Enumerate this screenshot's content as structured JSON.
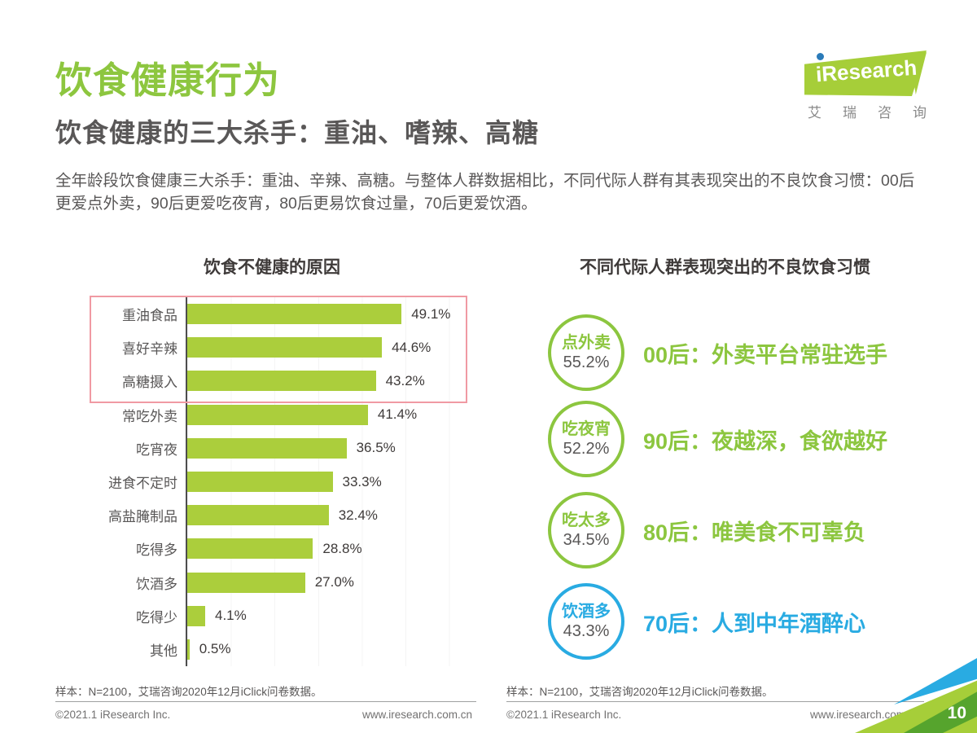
{
  "header": {
    "title": "饮食健康行为",
    "subtitle": "饮食健康的三大杀手：重油、嗜辣、高糖",
    "description": "全年龄段饮食健康三大杀手：重油、辛辣、高糖。与整体人群数据相比，不同代际人群有其表现突出的不良饮食习惯：00后更爱点外卖，90后更爱吃夜宵，80后更易饮食过量，70后更爱饮酒。"
  },
  "logo": {
    "brand": "iResearch",
    "brand_cn": "艾瑞咨询"
  },
  "colors": {
    "title_green": "#8dc63f",
    "bar_green": "#abce3c",
    "circle_green": "#8cc63f",
    "blue": "#29abe2",
    "highlight_box_red": "#f09aa3",
    "dark_text": "#3e3a39",
    "gray_text": "#595757"
  },
  "chart_data": {
    "type": "bar",
    "orientation": "horizontal",
    "title": "饮食不健康的原因",
    "categories": [
      "重油食品",
      "喜好辛辣",
      "高糖摄入",
      "常吃外卖",
      "吃宵夜",
      "进食不定时",
      "高盐腌制品",
      "吃得多",
      "饮酒多",
      "吃得少",
      "其他"
    ],
    "values": [
      49.1,
      44.6,
      43.2,
      41.4,
      36.5,
      33.3,
      32.4,
      28.8,
      27.0,
      4.1,
      0.5
    ],
    "values_display": [
      "49.1%",
      "44.6%",
      "43.2%",
      "41.4%",
      "36.5%",
      "33.3%",
      "32.4%",
      "28.8%",
      "27.0%",
      "4.1%",
      "0.5%"
    ],
    "highlighted_rows": [
      0,
      1,
      2
    ],
    "xlim": [
      0,
      55
    ],
    "grid": "faint-vertical",
    "legend": "none"
  },
  "habits": {
    "title": "不同代际人群表现突出的不良饮食习惯",
    "items": [
      {
        "circle_label": "点外卖",
        "circle_value": "55.2%",
        "caption": "00后：外卖平台常驻选手",
        "theme": "green"
      },
      {
        "circle_label": "吃夜宵",
        "circle_value": "52.2%",
        "caption": "90后：夜越深，食欲越好",
        "theme": "green"
      },
      {
        "circle_label": "吃太多",
        "circle_value": "34.5%",
        "caption": "80后：唯美食不可辜负",
        "theme": "green"
      },
      {
        "circle_label": "饮酒多",
        "circle_value": "43.3%",
        "caption": "70后：人到中年酒醉心",
        "theme": "blue"
      }
    ]
  },
  "footer": {
    "sample_note": "样本：N=2100，艾瑞咨询2020年12月iClick问卷数据。",
    "copyright": "©2021.1 iResearch Inc.",
    "website": "www.iresearch.com.cn",
    "page_number": "10"
  }
}
